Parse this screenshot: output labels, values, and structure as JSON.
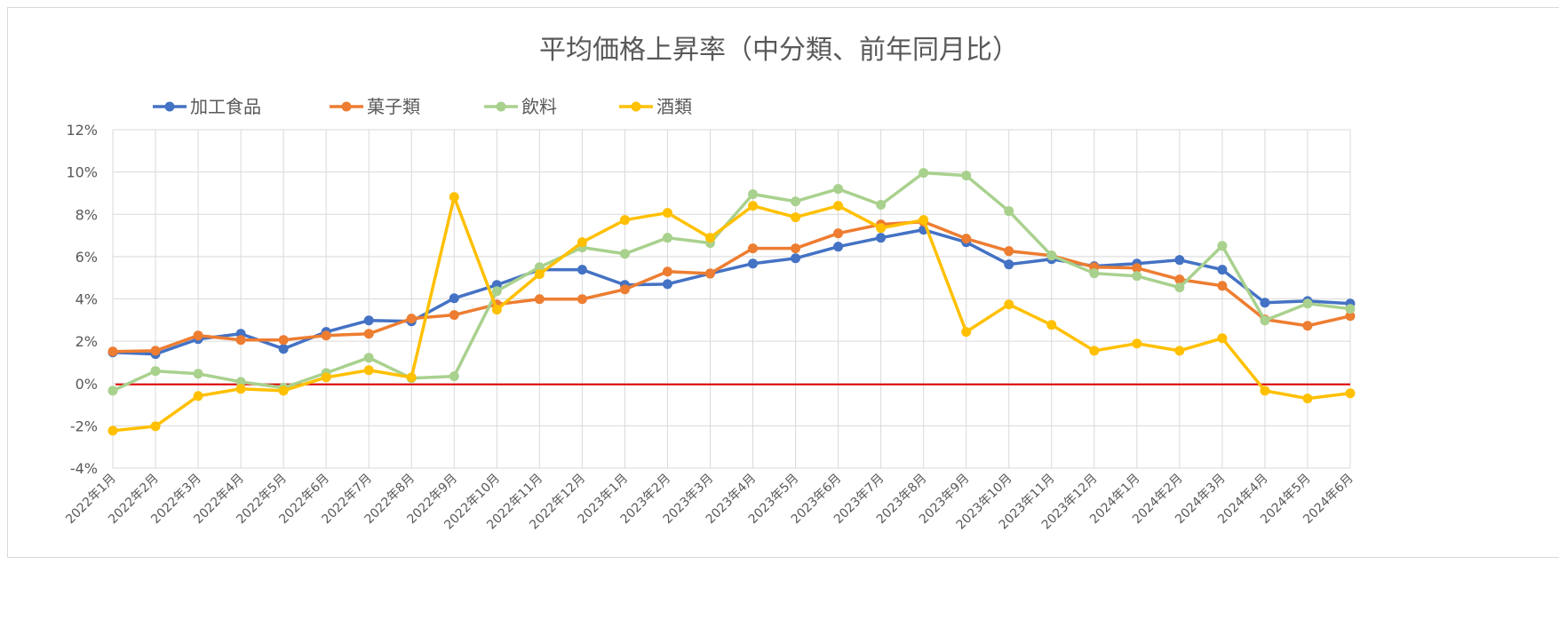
{
  "chart_data": {
    "type": "line",
    "title": "平均価格上昇率（中分類、前年同月比）",
    "xlabel": "",
    "ylabel": "",
    "ylim": [
      -4,
      12
    ],
    "yticks": [
      -4,
      -2,
      0,
      2,
      4,
      6,
      8,
      10,
      12
    ],
    "ytick_labels": [
      "-4%",
      "-2%",
      "0%",
      "2%",
      "4%",
      "6%",
      "8%",
      "10%",
      "12%"
    ],
    "grid": true,
    "legend_position": "top-left",
    "reference_line": {
      "value": 0,
      "color": "#e00000"
    },
    "categories": [
      "2022年1月",
      "2022年2月",
      "2022年3月",
      "2022年4月",
      "2022年5月",
      "2022年6月",
      "2022年7月",
      "2022年8月",
      "2022年9月",
      "2022年10月",
      "2022年11月",
      "2022年12月",
      "2023年1月",
      "2023年2月",
      "2023年3月",
      "2023年4月",
      "2023年5月",
      "2023年6月",
      "2023年7月",
      "2023年8月",
      "2023年9月",
      "2023年10月",
      "2023年11月",
      "2023年12月",
      "2024年1月",
      "2024年2月",
      "2024年3月",
      "2024年4月",
      "2024年5月",
      "2024年6月"
    ],
    "series": [
      {
        "name": "加工食品",
        "color": "#4472c4",
        "values": [
          1.47,
          1.39,
          2.1,
          2.35,
          1.64,
          2.44,
          2.98,
          2.94,
          4.03,
          4.66,
          5.38,
          5.38,
          4.66,
          4.7,
          5.2,
          5.67,
          5.92,
          6.47,
          6.89,
          7.27,
          6.68,
          5.63,
          5.88,
          5.55,
          5.67,
          5.84,
          5.38,
          3.82,
          3.9,
          3.78
        ]
      },
      {
        "name": "菓子類",
        "color": "#ed7d31",
        "values": [
          1.51,
          1.55,
          2.27,
          2.06,
          2.06,
          2.27,
          2.35,
          3.07,
          3.24,
          3.74,
          3.99,
          3.99,
          4.45,
          5.29,
          5.2,
          6.39,
          6.39,
          7.1,
          7.52,
          7.65,
          6.85,
          6.26,
          6.05,
          5.5,
          5.46,
          4.92,
          4.62,
          3.03,
          2.73,
          3.19
        ]
      },
      {
        "name": "飲料",
        "color": "#a9d18e",
        "values": [
          -0.34,
          0.59,
          0.46,
          0.08,
          -0.2,
          0.5,
          1.22,
          0.25,
          0.34,
          4.37,
          5.5,
          6.43,
          6.13,
          6.89,
          6.64,
          8.95,
          8.61,
          9.2,
          8.45,
          9.96,
          9.83,
          8.15,
          6.05,
          5.21,
          5.08,
          4.54,
          6.51,
          2.98,
          3.78,
          3.53
        ]
      },
      {
        "name": "酒類",
        "color": "#ffc000",
        "values": [
          -2.23,
          -2.02,
          -0.59,
          -0.25,
          -0.34,
          0.29,
          0.63,
          0.29,
          8.82,
          3.49,
          5.17,
          6.68,
          7.73,
          8.07,
          6.89,
          8.4,
          7.86,
          8.4,
          7.35,
          7.73,
          2.44,
          3.74,
          2.77,
          1.55,
          1.89,
          1.55,
          2.14,
          -0.34,
          -0.71,
          -0.46
        ]
      }
    ]
  }
}
